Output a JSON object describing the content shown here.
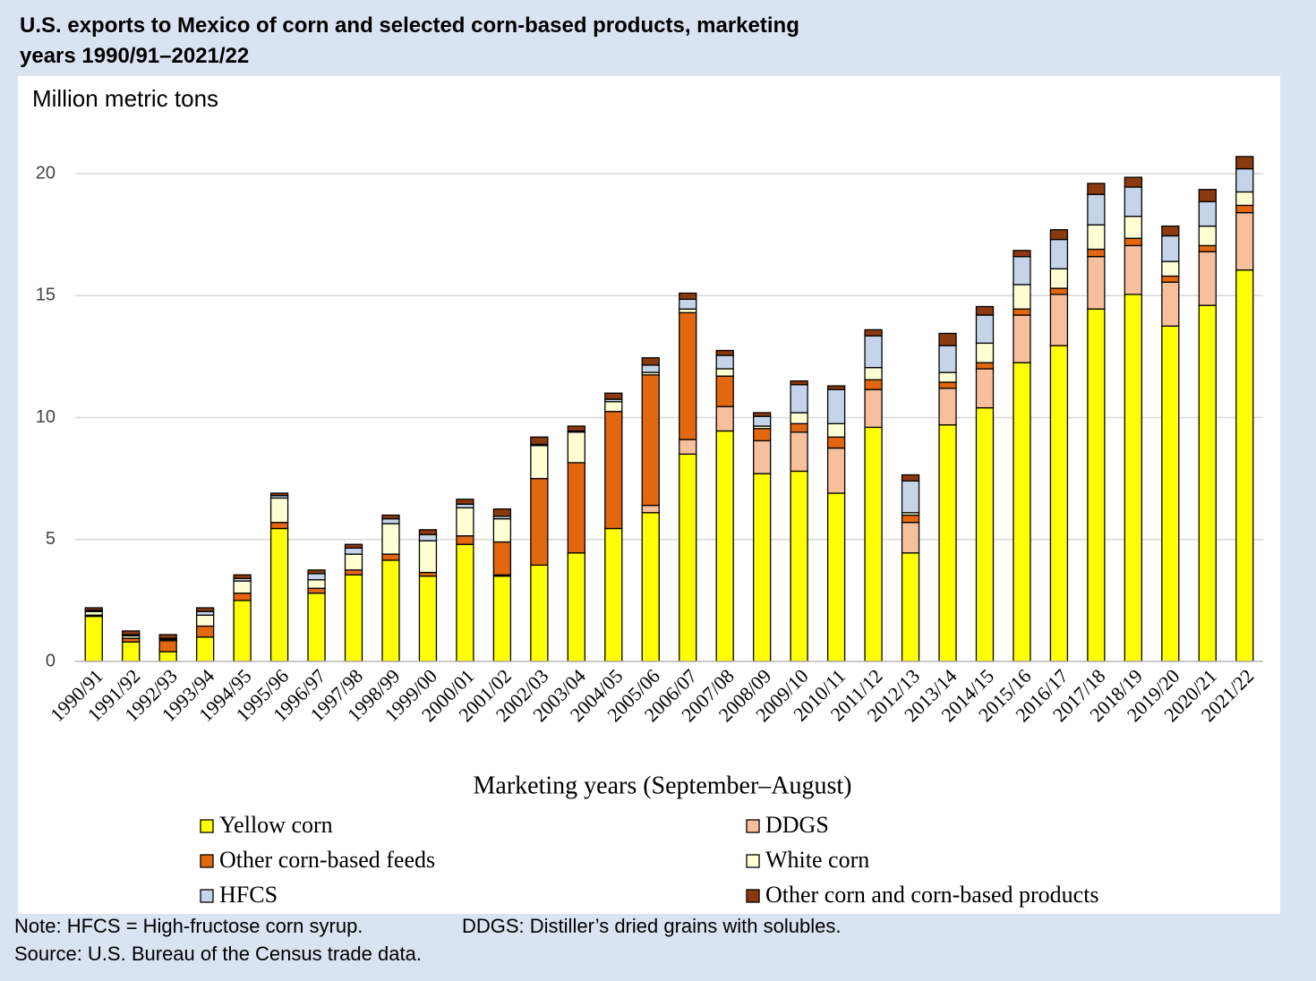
{
  "chart_data": {
    "type": "stacked_bar",
    "title": "U.S. exports to Mexico of corn and selected corn-based products, marketing years 1990/91–2021/22",
    "y_label": "Million metric tons",
    "x_label": "Marketing years (September–August)",
    "categories": [
      "1990/91",
      "1991/92",
      "1992/93",
      "1993/94",
      "1994/95",
      "1995/96",
      "1996/97",
      "1997/98",
      "1998/99",
      "1999/00",
      "2000/01",
      "2001/02",
      "2002/03",
      "2003/04",
      "2004/05",
      "2005/06",
      "2006/07",
      "2007/08",
      "2008/09",
      "2009/10",
      "2010/11",
      "2011/12",
      "2012/13",
      "2013/14",
      "2014/15",
      "2015/16",
      "2016/17",
      "2017/18",
      "2018/19",
      "2019/20",
      "2020/21",
      "2021/22"
    ],
    "series": [
      {
        "name": "Yellow corn",
        "color": "#ffff00",
        "values": [
          1.85,
          0.8,
          0.4,
          1.0,
          2.5,
          5.45,
          2.8,
          3.55,
          4.15,
          3.5,
          4.8,
          3.5,
          3.95,
          4.45,
          5.45,
          6.1,
          8.5,
          9.45,
          7.7,
          7.8,
          6.9,
          9.6,
          4.45,
          9.7,
          10.4,
          12.25,
          12.95,
          14.45,
          15.05,
          13.75,
          14.6,
          16.05
        ]
      },
      {
        "name": "DDGS",
        "color": "#f8bf9c",
        "values": [
          0,
          0,
          0,
          0,
          0,
          0,
          0,
          0,
          0,
          0,
          0,
          0.05,
          0,
          0,
          0,
          0.3,
          0.6,
          1.0,
          1.35,
          1.6,
          1.85,
          1.55,
          1.25,
          1.5,
          1.6,
          1.95,
          2.1,
          2.15,
          2.0,
          1.8,
          2.2,
          2.35
        ]
      },
      {
        "name": "Other corn-based feeds",
        "color": "#e2670f",
        "values": [
          0.05,
          0.15,
          0.45,
          0.45,
          0.3,
          0.25,
          0.2,
          0.2,
          0.25,
          0.15,
          0.35,
          1.35,
          3.55,
          3.7,
          4.8,
          5.35,
          5.2,
          1.25,
          0.5,
          0.35,
          0.45,
          0.4,
          0.3,
          0.25,
          0.25,
          0.25,
          0.25,
          0.3,
          0.3,
          0.25,
          0.25,
          0.3
        ]
      },
      {
        "name": "White corn",
        "color": "#ffffd4",
        "values": [
          0.15,
          0.1,
          0.05,
          0.45,
          0.5,
          1.0,
          0.35,
          0.65,
          1.25,
          1.3,
          1.15,
          0.95,
          1.35,
          1.25,
          0.4,
          0.1,
          0.15,
          0.3,
          0.1,
          0.45,
          0.55,
          0.5,
          0.1,
          0.4,
          0.8,
          1.0,
          0.8,
          1.0,
          0.9,
          0.6,
          0.8,
          0.55
        ]
      },
      {
        "name": "HFCS",
        "color": "#c6d4ea",
        "values": [
          0.05,
          0.05,
          0.05,
          0.15,
          0.1,
          0.1,
          0.25,
          0.25,
          0.2,
          0.25,
          0.15,
          0.1,
          0.05,
          0.05,
          0.1,
          0.3,
          0.4,
          0.55,
          0.4,
          1.15,
          1.4,
          1.3,
          1.3,
          1.1,
          1.15,
          1.15,
          1.2,
          1.25,
          1.2,
          1.05,
          1.0,
          0.95
        ]
      },
      {
        "name": "Other corn and corn-based products",
        "color": "#8b3a10",
        "values": [
          0.1,
          0.15,
          0.15,
          0.15,
          0.15,
          0.1,
          0.15,
          0.15,
          0.15,
          0.2,
          0.2,
          0.3,
          0.3,
          0.2,
          0.25,
          0.3,
          0.25,
          0.2,
          0.15,
          0.15,
          0.15,
          0.25,
          0.25,
          0.5,
          0.35,
          0.25,
          0.4,
          0.45,
          0.4,
          0.4,
          0.5,
          0.5
        ]
      }
    ],
    "ylim": [
      0,
      20
    ],
    "yticks": [
      0,
      5,
      10,
      15,
      20
    ],
    "grid": true,
    "notes": [
      "Note: HFCS = High-fructose corn syrup.",
      "DDGS: Distiller’s dried grains with solubles.",
      "Source: U.S. Bureau of the Census trade data."
    ]
  }
}
